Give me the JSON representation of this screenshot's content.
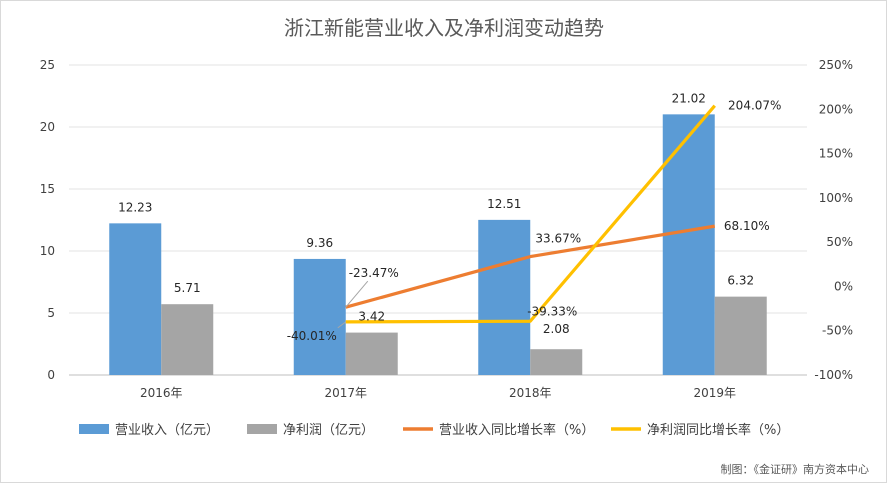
{
  "chart_data": {
    "type": "bar",
    "title": "浙江新能营业收入及净利润变动趋势",
    "categories": [
      "2016年",
      "2017年",
      "2018年",
      "2019年"
    ],
    "y_left": {
      "range": [
        0,
        25
      ],
      "ticks": [
        "0",
        "5",
        "10",
        "15",
        "20",
        "25"
      ],
      "tick_values": [
        0,
        5,
        10,
        15,
        20,
        25
      ]
    },
    "y_right": {
      "range": [
        -100,
        250
      ],
      "ticks": [
        "-100%",
        "-50%",
        "0%",
        "50%",
        "100%",
        "150%",
        "200%",
        "250%"
      ],
      "tick_values": [
        -100,
        -50,
        0,
        50,
        100,
        150,
        200,
        250
      ]
    },
    "grid": true,
    "legend_position": "bottom",
    "bar_series": [
      {
        "name": "营业收入（亿元）",
        "color": "#5b9bd5",
        "values": [
          12.23,
          9.36,
          12.51,
          21.02
        ],
        "labels": [
          "12.23",
          "9.36",
          "12.51",
          "21.02"
        ]
      },
      {
        "name": "净利润（亿元）",
        "color": "#a5a5a5",
        "values": [
          5.71,
          3.42,
          2.08,
          6.32
        ],
        "labels": [
          "5.71",
          "3.42",
          "2.08",
          "6.32"
        ]
      }
    ],
    "line_series": [
      {
        "name": "营业收入同比增长率（%）",
        "color": "#ed7d31",
        "values": [
          null,
          -23.47,
          33.67,
          68.1
        ],
        "labels": [
          null,
          "-23.47%",
          "33.67%",
          "68.10%"
        ]
      },
      {
        "name": "净利润同比增长率（%）",
        "color": "#ffc000",
        "values": [
          null,
          -40.01,
          -39.33,
          204.07
        ],
        "labels": [
          null,
          "-40.01%",
          "-39.33%",
          "204.07%"
        ]
      }
    ]
  },
  "credit": "制图：《金证研》南方资本中心"
}
